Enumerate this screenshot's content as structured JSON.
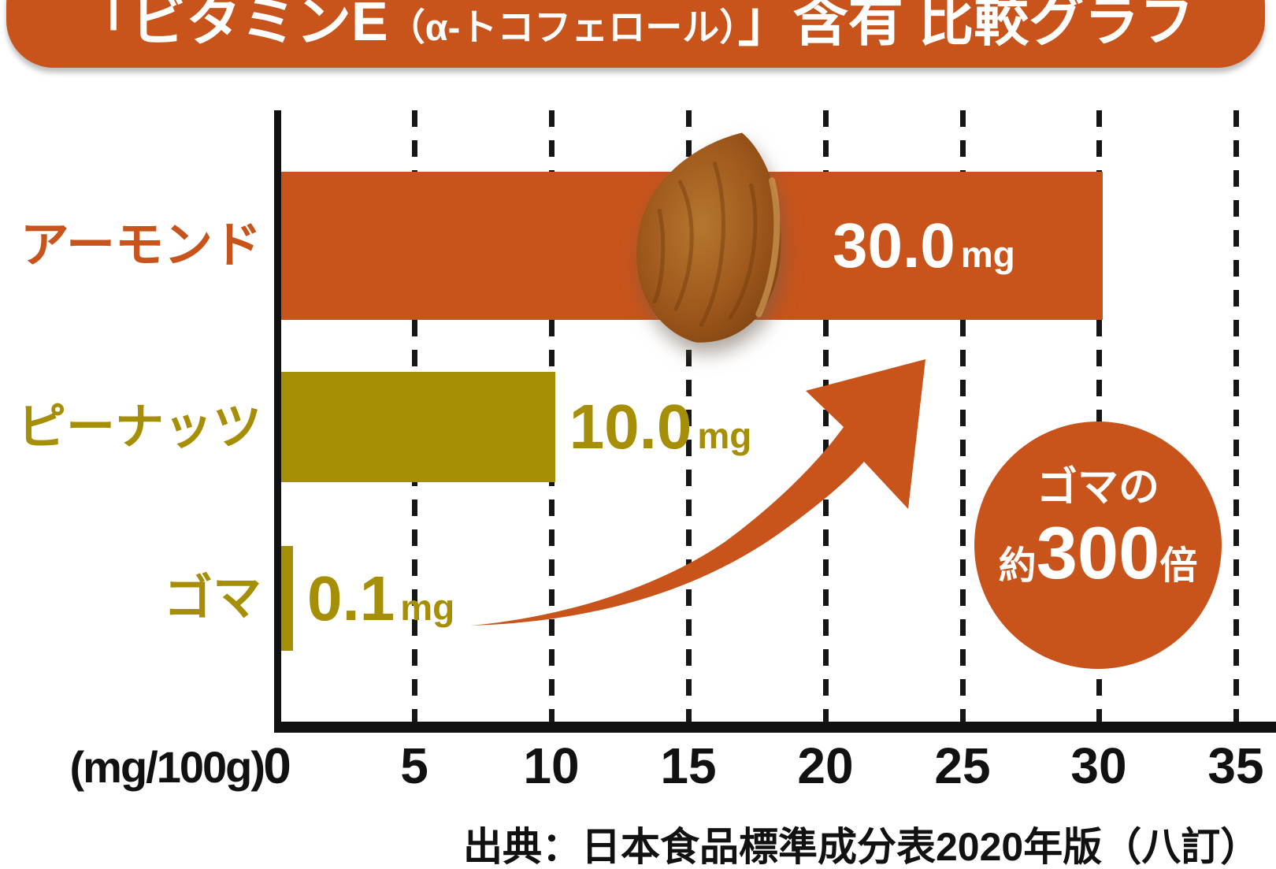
{
  "title": {
    "part1": "「ビタミンE",
    "part2": "（α-トコフェロール）",
    "part3": "」含有 比較グラフ"
  },
  "axis": {
    "unit_label": "(mg/100g)",
    "ticks": [
      "0",
      "5",
      "10",
      "15",
      "20",
      "25",
      "30",
      "35"
    ]
  },
  "rows": [
    {
      "label": "アーモンド",
      "value": "30.0",
      "unit": "mg"
    },
    {
      "label": "ピーナッツ",
      "value": "10.0",
      "unit": "mg"
    },
    {
      "label": "ゴマ",
      "value": "0.1",
      "unit": "mg"
    }
  ],
  "badge": {
    "line1": "ゴマの",
    "prefix": "約",
    "number": "300",
    "suffix": "倍"
  },
  "colors": {
    "orange": "#c8541b",
    "olive": "#a68f05",
    "axis_black": "#111111"
  },
  "chart_data": {
    "type": "bar",
    "orientation": "horizontal",
    "title": "「ビタミンE（α-トコフェロール）」含有 比較グラフ",
    "categories": [
      "アーモンド",
      "ピーナッツ",
      "ゴマ"
    ],
    "values": [
      30.0,
      10.0,
      0.1
    ],
    "unit": "mg",
    "xlabel": "(mg/100g)",
    "xlim": [
      0,
      35
    ],
    "xticks": [
      0,
      5,
      10,
      15,
      20,
      25,
      30,
      35
    ],
    "grid": "dashed-vertical",
    "legend": "none",
    "bar_colors": [
      "#c8541b",
      "#a68f05",
      "#a68f05"
    ],
    "annotation": {
      "text": "ゴマの約300倍",
      "shape": "circle"
    },
    "source": "出典：日本食品標準成分表2020年版（八訂）"
  }
}
